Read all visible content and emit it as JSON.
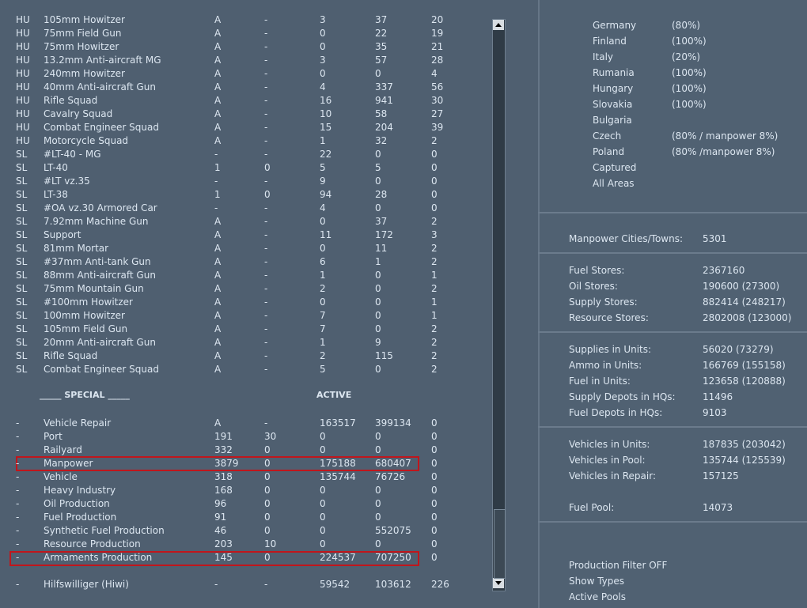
{
  "units": {
    "rows": [
      [
        "HU",
        "105mm Howitzer",
        "A",
        "-",
        "3",
        "37",
        "20"
      ],
      [
        "HU",
        "75mm Field Gun",
        "A",
        "-",
        "0",
        "22",
        "19"
      ],
      [
        "HU",
        "75mm Howitzer",
        "A",
        "-",
        "0",
        "35",
        "21"
      ],
      [
        "HU",
        "13.2mm Anti-aircraft MG",
        "A",
        "-",
        "3",
        "57",
        "28"
      ],
      [
        "HU",
        "240mm Howitzer",
        "A",
        "-",
        "0",
        "0",
        "4"
      ],
      [
        "HU",
        "40mm Anti-aircraft Gun",
        "A",
        "-",
        "4",
        "337",
        "56"
      ],
      [
        "HU",
        "Rifle Squad",
        "A",
        "-",
        "16",
        "941",
        "30"
      ],
      [
        "HU",
        "Cavalry Squad",
        "A",
        "-",
        "10",
        "58",
        "27"
      ],
      [
        "HU",
        "Combat Engineer Squad",
        "A",
        "-",
        "15",
        "204",
        "39"
      ],
      [
        "HU",
        "Motorcycle Squad",
        "A",
        "-",
        "1",
        "32",
        "2"
      ],
      [
        "SL",
        "#LT-40 - MG",
        "-",
        "-",
        "22",
        "0",
        "0"
      ],
      [
        "SL",
        "LT-40",
        "1",
        "0",
        "5",
        "5",
        "0"
      ],
      [
        "SL",
        "#LT vz.35",
        "-",
        "-",
        "9",
        "0",
        "0"
      ],
      [
        "SL",
        "LT-38",
        "1",
        "0",
        "94",
        "28",
        "0"
      ],
      [
        "SL",
        "#OA vz.30 Armored Car",
        "-",
        "-",
        "4",
        "0",
        "0"
      ],
      [
        "SL",
        "7.92mm Machine Gun",
        "A",
        "-",
        "0",
        "37",
        "2"
      ],
      [
        "SL",
        "Support",
        "A",
        "-",
        "11",
        "172",
        "3"
      ],
      [
        "SL",
        "81mm Mortar",
        "A",
        "-",
        "0",
        "11",
        "2"
      ],
      [
        "SL",
        "#37mm Anti-tank Gun",
        "A",
        "-",
        "6",
        "1",
        "2"
      ],
      [
        "SL",
        "88mm Anti-aircraft Gun",
        "A",
        "-",
        "1",
        "0",
        "1"
      ],
      [
        "SL",
        "75mm Mountain Gun",
        "A",
        "-",
        "2",
        "0",
        "2"
      ],
      [
        "SL",
        "#100mm Howitzer",
        "A",
        "-",
        "0",
        "0",
        "1"
      ],
      [
        "SL",
        "100mm Howitzer",
        "A",
        "-",
        "7",
        "0",
        "1"
      ],
      [
        "SL",
        "105mm Field Gun",
        "A",
        "-",
        "7",
        "0",
        "2"
      ],
      [
        "SL",
        "20mm Anti-aircraft Gun",
        "A",
        "-",
        "1",
        "9",
        "2"
      ],
      [
        "SL",
        "Rifle Squad",
        "A",
        "-",
        "2",
        "115",
        "2"
      ],
      [
        "SL",
        "Combat Engineer Squad",
        "A",
        "-",
        "5",
        "0",
        "2"
      ]
    ]
  },
  "special": {
    "heading": "_____ SPECIAL _____",
    "active": "ACTIVE",
    "rows": [
      [
        "-",
        "Vehicle Repair",
        "A",
        "-",
        "163517",
        "399134",
        "0"
      ],
      [
        "-",
        "Port",
        "191",
        "30",
        "0",
        "0",
        "0"
      ],
      [
        "-",
        "Railyard",
        "332",
        "0",
        "0",
        "0",
        "0"
      ],
      [
        "-",
        "Manpower",
        "3879",
        "0",
        "175188",
        "680407",
        "0"
      ],
      [
        "-",
        "Vehicle",
        "318",
        "0",
        "135744",
        "76726",
        "0"
      ],
      [
        "-",
        "Heavy Industry",
        "168",
        "0",
        "0",
        "0",
        "0"
      ],
      [
        "-",
        "Oil Production",
        "96",
        "0",
        "0",
        "0",
        "0"
      ],
      [
        "-",
        "Fuel Production",
        "91",
        "0",
        "0",
        "0",
        "0"
      ],
      [
        "-",
        "Synthetic Fuel Production",
        "46",
        "0",
        "0",
        "552075",
        "0"
      ],
      [
        "-",
        "Resource Production",
        "203",
        "10",
        "0",
        "0",
        "0"
      ],
      [
        "-",
        "Armaments Production",
        "145",
        "0",
        "224537",
        "707250",
        "0"
      ]
    ],
    "hiwi": [
      "-",
      "Hilfswilliger (Hiwi)",
      "-",
      "-",
      "59542",
      "103612",
      "226"
    ]
  },
  "countries": [
    {
      "name": "Germany",
      "value": "(80%)"
    },
    {
      "name": "Finland",
      "value": "(100%)"
    },
    {
      "name": "Italy",
      "value": "(20%)"
    },
    {
      "name": "Rumania",
      "value": "(100%)"
    },
    {
      "name": "Hungary",
      "value": "(100%)"
    },
    {
      "name": "Slovakia",
      "value": "(100%)"
    },
    {
      "name": "Bulgaria"
    },
    {
      "name": "Czech",
      "value": "(80% / manpower 8%)"
    },
    {
      "name": "Poland",
      "value": "(80% /manpower 8%)"
    },
    {
      "name": "Captured"
    },
    {
      "name": "All Areas"
    }
  ],
  "stats": [
    [
      {
        "label": "Manpower Cities/Towns:",
        "value": "5301"
      }
    ],
    [
      {
        "label": "Fuel Stores:",
        "value": "2367160"
      },
      {
        "label": "Oil Stores:",
        "value": "190600 (27300)"
      },
      {
        "label": "Supply Stores:",
        "value": "882414 (248217)"
      },
      {
        "label": "Resource Stores:",
        "value": "2802008 (123000)"
      }
    ],
    [
      {
        "label": "Supplies in Units:",
        "value": "56020 (73279)"
      },
      {
        "label": "Ammo in Units:",
        "value": "166769 (155158)"
      },
      {
        "label": "Fuel in Units:",
        "value": "123658 (120888)"
      },
      {
        "label": "Supply Depots in HQs:",
        "value": "11496"
      },
      {
        "label": "Fuel Depots in HQs:",
        "value": "9103"
      }
    ],
    [
      {
        "label": "Vehicles in Units:",
        "value": "187835 (203042)"
      },
      {
        "label": "Vehicles in Pool:",
        "value": "135744 (125539)"
      },
      {
        "label": "Vehicles in Repair:",
        "value": "157125"
      }
    ],
    [
      {
        "label": "Fuel Pool:",
        "value": "14073"
      }
    ]
  ],
  "menu": [
    "Production Filter OFF",
    "Show Types",
    "Active Pools"
  ]
}
